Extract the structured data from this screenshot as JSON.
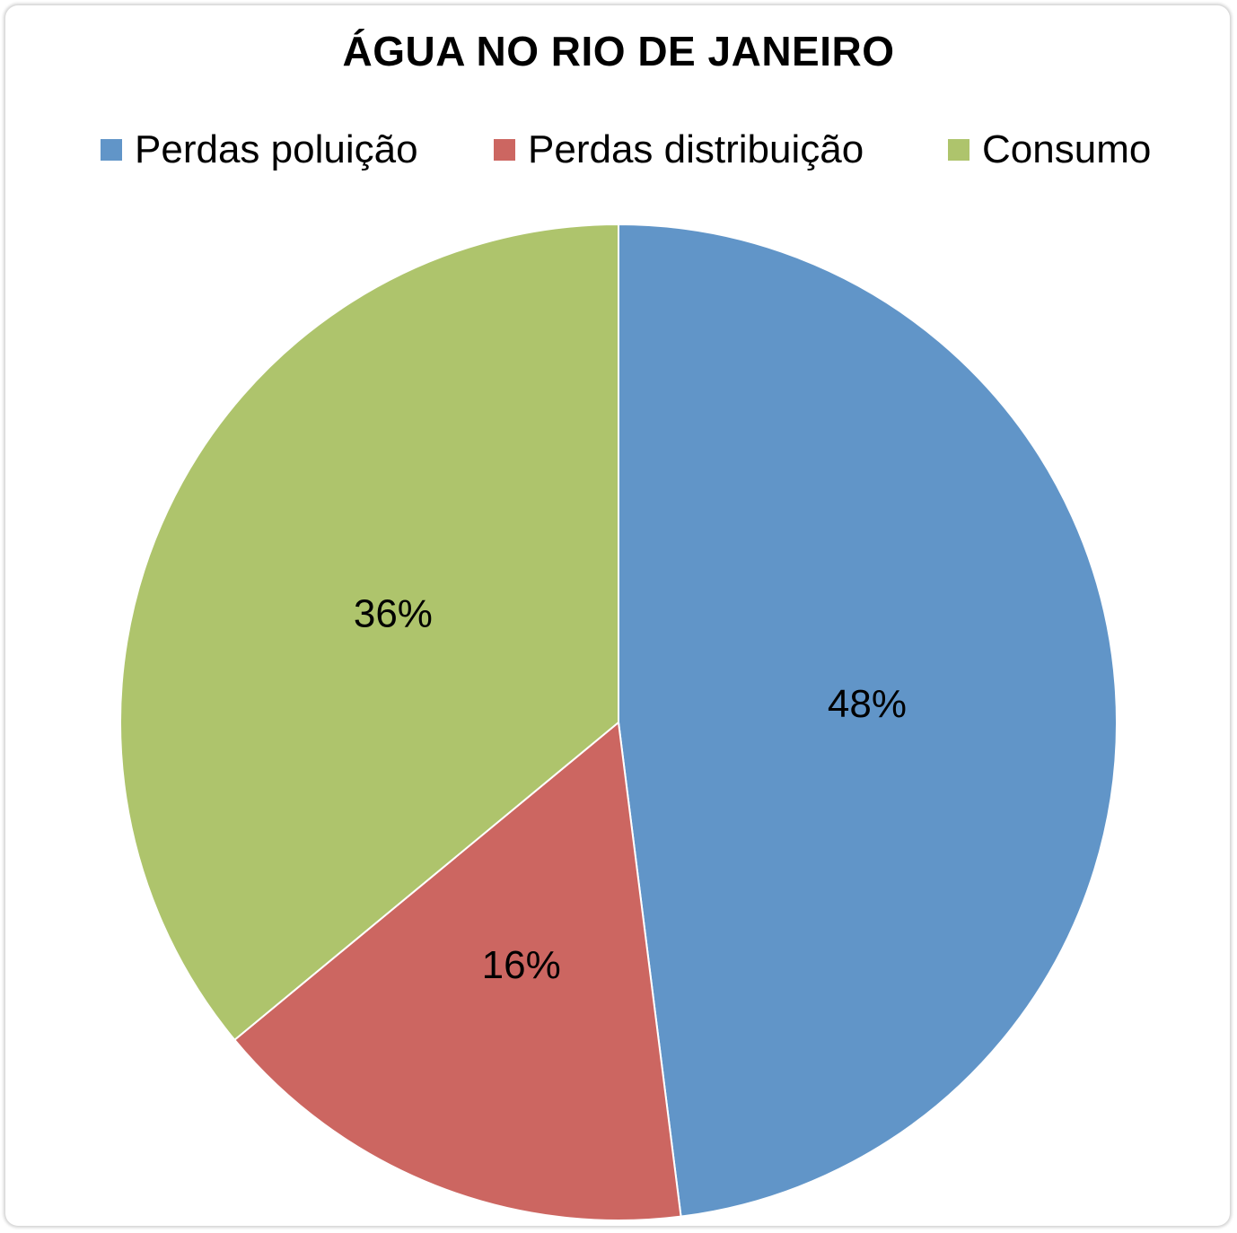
{
  "chart_data": {
    "type": "pie",
    "title": "ÁGUA NO RIO DE JANEIRO",
    "legend_position": "top",
    "categories": [
      "Perdas poluição",
      "Perdas distribuição",
      "Consumo"
    ],
    "values": [
      48,
      16,
      36
    ],
    "labels": [
      "48%",
      "16%",
      "36%"
    ],
    "colors": [
      "#6195C8",
      "#CC6661",
      "#AEC46C"
    ],
    "start_angle_deg": 0,
    "direction": "clockwise"
  }
}
